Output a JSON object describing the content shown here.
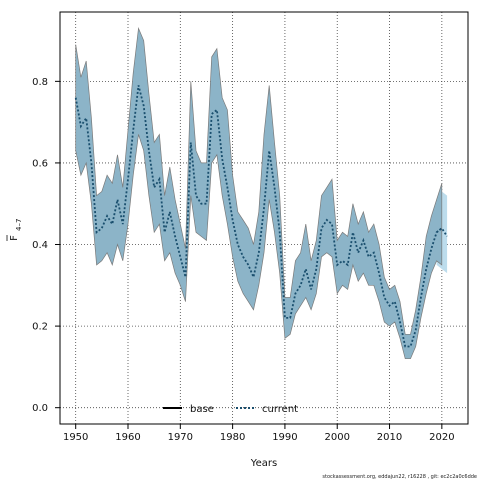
{
  "chart_data": {
    "type": "line",
    "xlabel": "Years",
    "ylabel_main": "F",
    "ylabel_sub": "4–7",
    "xlim": [
      1947,
      2025
    ],
    "ylim": [
      -0.04,
      0.97
    ],
    "xticks": [
      1950,
      1960,
      1970,
      1980,
      1990,
      2000,
      2010,
      2020
    ],
    "yticks": [
      0.0,
      0.2,
      0.4,
      0.6,
      0.8
    ],
    "ytick_labels": [
      "0.0",
      "0.2",
      "0.4",
      "0.6",
      "0.8"
    ],
    "grid": true,
    "legend_position": "bottom",
    "series": [
      {
        "name": "base",
        "color": "#000000",
        "style": "solid",
        "band_color": "#8cb4c8",
        "band_edge": "#7a7a7a",
        "x": [
          1950,
          1951,
          1952,
          1953,
          1954,
          1955,
          1956,
          1957,
          1958,
          1959,
          1960,
          1961,
          1962,
          1963,
          1964,
          1965,
          1966,
          1967,
          1968,
          1969,
          1970,
          1971,
          1972,
          1973,
          1974,
          1975,
          1976,
          1977,
          1978,
          1979,
          1980,
          1981,
          1982,
          1983,
          1984,
          1985,
          1986,
          1987,
          1988,
          1989,
          1990,
          1991,
          1992,
          1993,
          1994,
          1995,
          1996,
          1997,
          1998,
          1999,
          2000,
          2001,
          2002,
          2003,
          2004,
          2005,
          2006,
          2007,
          2008,
          2009,
          2010,
          2011,
          2012,
          2013,
          2014,
          2015,
          2016,
          2017,
          2018,
          2019,
          2020
        ],
        "y": [
          0.76,
          0.69,
          0.71,
          0.6,
          0.43,
          0.44,
          0.47,
          0.45,
          0.51,
          0.45,
          0.56,
          0.68,
          0.79,
          0.74,
          0.63,
          0.54,
          0.56,
          0.43,
          0.48,
          0.42,
          0.37,
          0.32,
          0.65,
          0.52,
          0.5,
          0.5,
          0.72,
          0.73,
          0.61,
          0.54,
          0.46,
          0.4,
          0.37,
          0.35,
          0.32,
          0.38,
          0.49,
          0.63,
          0.54,
          0.43,
          0.22,
          0.22,
          0.28,
          0.3,
          0.34,
          0.29,
          0.34,
          0.44,
          0.46,
          0.45,
          0.35,
          0.36,
          0.35,
          0.43,
          0.38,
          0.41,
          0.37,
          0.38,
          0.33,
          0.27,
          0.25,
          0.26,
          0.21,
          0.15,
          0.15,
          0.19,
          0.27,
          0.34,
          0.39,
          0.43,
          0.44
        ],
        "lower": [
          0.63,
          0.57,
          0.6,
          0.5,
          0.35,
          0.36,
          0.38,
          0.35,
          0.4,
          0.36,
          0.45,
          0.57,
          0.67,
          0.63,
          0.52,
          0.43,
          0.45,
          0.36,
          0.38,
          0.33,
          0.3,
          0.26,
          0.52,
          0.43,
          0.42,
          0.41,
          0.6,
          0.62,
          0.52,
          0.45,
          0.37,
          0.31,
          0.28,
          0.26,
          0.24,
          0.3,
          0.38,
          0.51,
          0.43,
          0.33,
          0.17,
          0.18,
          0.23,
          0.25,
          0.27,
          0.24,
          0.28,
          0.37,
          0.38,
          0.37,
          0.28,
          0.3,
          0.29,
          0.35,
          0.31,
          0.33,
          0.3,
          0.3,
          0.26,
          0.21,
          0.2,
          0.21,
          0.17,
          0.12,
          0.12,
          0.15,
          0.22,
          0.28,
          0.33,
          0.36,
          0.35
        ],
        "upper": [
          0.89,
          0.81,
          0.85,
          0.71,
          0.52,
          0.53,
          0.57,
          0.55,
          0.62,
          0.54,
          0.68,
          0.82,
          0.93,
          0.9,
          0.77,
          0.65,
          0.67,
          0.52,
          0.59,
          0.51,
          0.45,
          0.39,
          0.8,
          0.63,
          0.6,
          0.6,
          0.86,
          0.88,
          0.76,
          0.73,
          0.57,
          0.48,
          0.46,
          0.44,
          0.4,
          0.48,
          0.67,
          0.79,
          0.65,
          0.52,
          0.27,
          0.27,
          0.36,
          0.38,
          0.45,
          0.36,
          0.41,
          0.52,
          0.54,
          0.56,
          0.41,
          0.43,
          0.42,
          0.5,
          0.45,
          0.48,
          0.43,
          0.45,
          0.4,
          0.32,
          0.29,
          0.3,
          0.26,
          0.18,
          0.18,
          0.24,
          0.32,
          0.42,
          0.47,
          0.51,
          0.55
        ]
      },
      {
        "name": "current",
        "color": "#1a4f6e",
        "style": "dotted",
        "band_color": "#bcdcec",
        "x": [
          2019,
          2020,
          2021
        ],
        "y": [
          0.43,
          0.44,
          0.42
        ],
        "lower": [
          0.35,
          0.34,
          0.33
        ],
        "upper": [
          0.51,
          0.53,
          0.52
        ]
      }
    ]
  },
  "footer": "stockassessment.org, eddajun22, r16228 , git: ec2c2a0c6dde"
}
